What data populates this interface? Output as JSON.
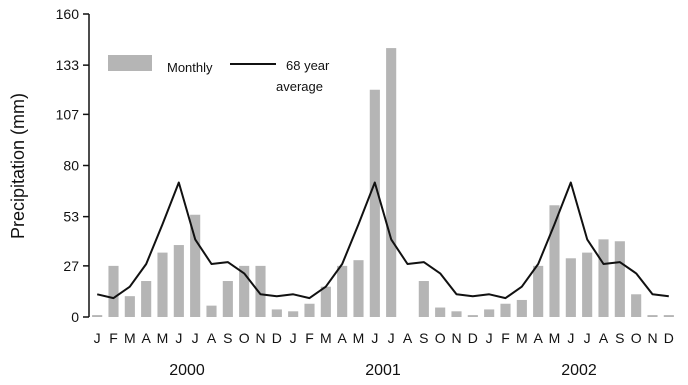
{
  "chart_data": {
    "type": "bar",
    "ylabel": "Precipitation (mm)",
    "ylim": [
      0,
      160
    ],
    "yticks": [
      "0",
      "27",
      "53",
      "80",
      "107",
      "133",
      "160"
    ],
    "bar_color": "#b5b5b5",
    "line_color": "#111111",
    "legend": {
      "placement": "top-left",
      "bar_label": "Monthly",
      "line_label_1": "68 year",
      "line_label_2": "average"
    },
    "years": [
      "2000",
      "2001",
      "2002"
    ],
    "months": [
      "J",
      "F",
      "M",
      "A",
      "M",
      "J",
      "J",
      "A",
      "S",
      "O",
      "N",
      "D",
      "J",
      "F",
      "M",
      "A",
      "M",
      "J",
      "J",
      "A",
      "S",
      "O",
      "N",
      "D",
      "J",
      "F",
      "M",
      "A",
      "M",
      "J",
      "J",
      "A",
      "S",
      "O",
      "N",
      "D"
    ],
    "series": [
      {
        "name": "Monthly",
        "kind": "bar",
        "values": [
          1,
          27,
          11,
          19,
          34,
          38,
          54,
          6,
          19,
          27,
          27,
          4,
          3,
          7,
          16,
          27,
          30,
          120,
          142,
          0,
          19,
          5,
          3,
          1,
          4,
          7,
          9,
          27,
          59,
          31,
          34,
          41,
          40,
          12,
          1,
          1
        ]
      },
      {
        "name": "68 year average",
        "kind": "line",
        "values": [
          12,
          10,
          16,
          28,
          49,
          71,
          41,
          28,
          29,
          23,
          12,
          11,
          12,
          10,
          16,
          28,
          49,
          71,
          41,
          28,
          29,
          23,
          12,
          11,
          12,
          10,
          16,
          28,
          49,
          71,
          41,
          28,
          29,
          23,
          12,
          11
        ]
      }
    ]
  }
}
